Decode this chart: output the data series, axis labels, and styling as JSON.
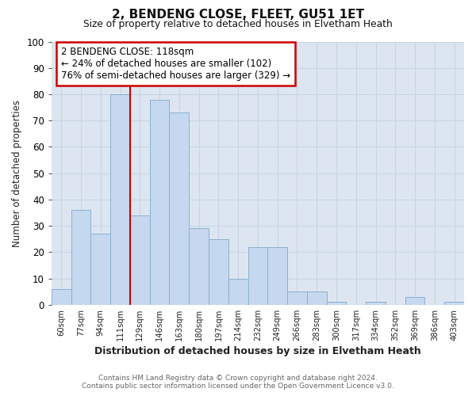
{
  "title": "2, BENDENG CLOSE, FLEET, GU51 1ET",
  "subtitle": "Size of property relative to detached houses in Elvetham Heath",
  "xlabel": "Distribution of detached houses by size in Elvetham Heath",
  "ylabel": "Number of detached properties",
  "categories": [
    "60sqm",
    "77sqm",
    "94sqm",
    "111sqm",
    "129sqm",
    "146sqm",
    "163sqm",
    "180sqm",
    "197sqm",
    "214sqm",
    "232sqm",
    "249sqm",
    "266sqm",
    "283sqm",
    "300sqm",
    "317sqm",
    "334sqm",
    "352sqm",
    "369sqm",
    "386sqm",
    "403sqm"
  ],
  "values": [
    6,
    36,
    27,
    80,
    34,
    78,
    73,
    29,
    25,
    10,
    22,
    22,
    5,
    5,
    1,
    0,
    1,
    0,
    3,
    0,
    1
  ],
  "bar_color": "#c5d8ef",
  "bar_edge_color": "#8ab0d0",
  "annotation_text": "2 BENDENG CLOSE: 118sqm\n← 24% of detached houses are smaller (102)\n76% of semi-detached houses are larger (329) →",
  "annotation_box_color": "#ffffff",
  "annotation_box_edge_color": "#cc0000",
  "red_line_x": 3.5,
  "ylim": [
    0,
    100
  ],
  "yticks": [
    0,
    10,
    20,
    30,
    40,
    50,
    60,
    70,
    80,
    90,
    100
  ],
  "grid_color": "#c8d4e8",
  "background_color": "#dde6f0",
  "fig_background": "#ffffff",
  "footer_line1": "Contains HM Land Registry data © Crown copyright and database right 2024.",
  "footer_line2": "Contains public sector information licensed under the Open Government Licence v3.0."
}
